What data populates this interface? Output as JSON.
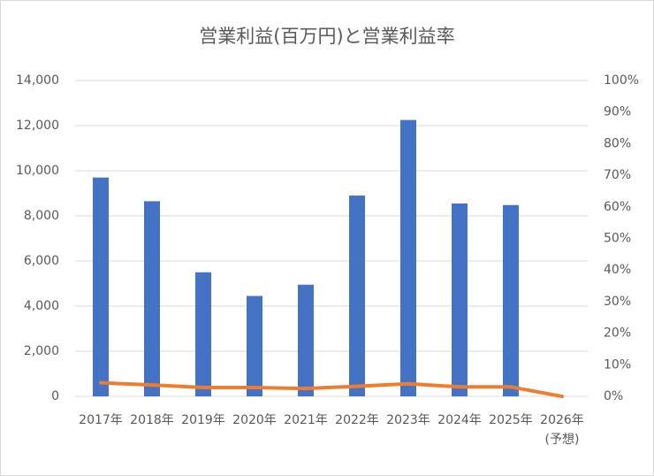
{
  "chart_data": {
    "type": "bar-line",
    "title": "営業利益(百万円)と営業利益率",
    "categories": [
      "2017年",
      "2018年",
      "2019年",
      "2020年",
      "2021年",
      "2022年",
      "2023年",
      "2024年",
      "2025年",
      "2026年(予想)"
    ],
    "series": [
      {
        "type": "bar",
        "color": "#4472c4",
        "values": [
          9700,
          8650,
          5500,
          4450,
          4950,
          8900,
          12250,
          8550,
          8480,
          null
        ]
      },
      {
        "type": "line",
        "color": "#ed7d31",
        "axis": "y2",
        "values": [
          4.3,
          3.6,
          2.8,
          2.8,
          2.5,
          3.2,
          4.0,
          3.0,
          3.0,
          0
        ]
      }
    ],
    "ylim": [
      0,
      14000
    ],
    "yticks": [
      0,
      {
        "value": 2000,
        "label": "2,000"
      },
      {
        "value": 4000,
        "label": "4,000"
      },
      {
        "value": 6000,
        "label": "6,000"
      },
      {
        "value": 8000,
        "label": "8,000"
      },
      {
        "value": 10000,
        "label": "10,000"
      },
      {
        "value": 12000,
        "label": "12,000"
      },
      {
        "value": 14000,
        "label": "14,000"
      }
    ],
    "y2lim": [
      0,
      100
    ],
    "y2ticks": [
      {
        "value": 0,
        "label": "0%"
      },
      {
        "value": 10,
        "label": "10%"
      },
      {
        "value": 20,
        "label": "20%"
      },
      {
        "value": 30,
        "label": "30%"
      },
      {
        "value": 40,
        "label": "40%"
      },
      {
        "value": 50,
        "label": "50%"
      },
      {
        "value": 60,
        "label": "60%"
      },
      {
        "value": 70,
        "label": "70%"
      },
      {
        "value": 80,
        "label": "80%"
      },
      {
        "value": 90,
        "label": "90%"
      },
      {
        "value": 100,
        "label": "100%"
      }
    ],
    "grid": true
  }
}
